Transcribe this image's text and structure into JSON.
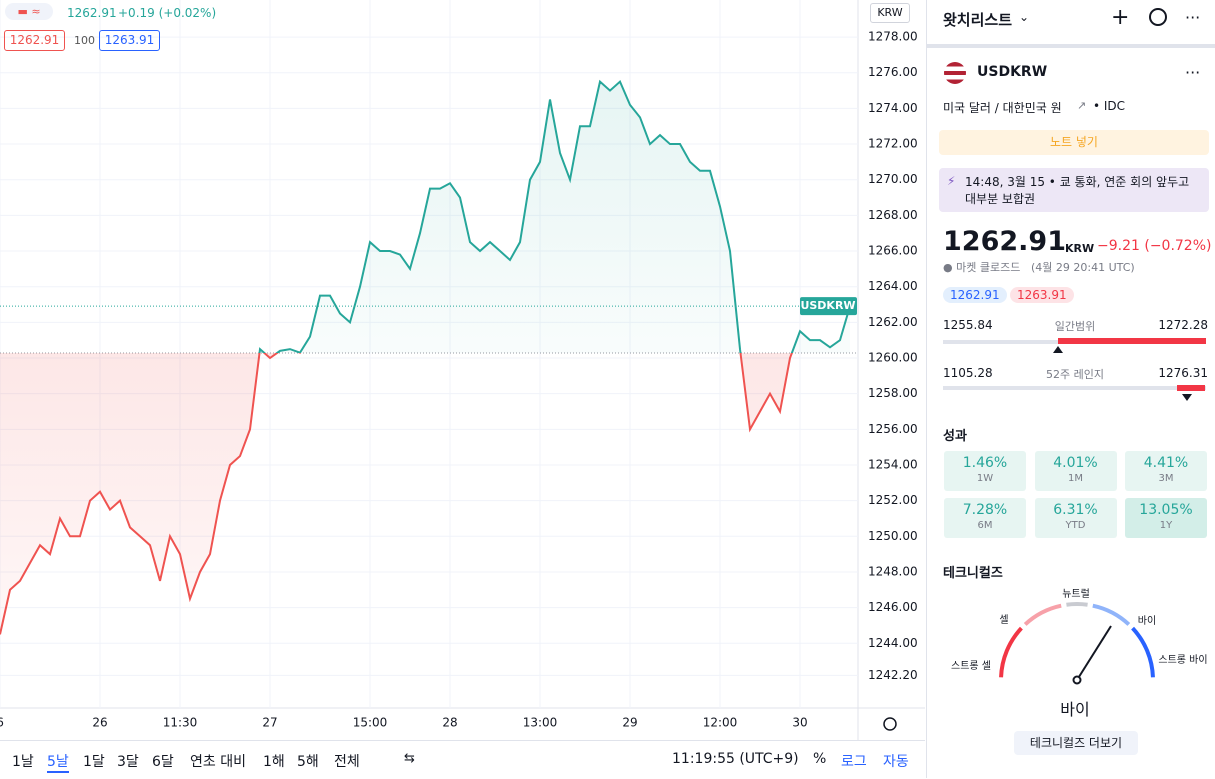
{
  "top_bar": {
    "price": "1262.91",
    "change": "+0.19 (+0.02%)",
    "bid": "1262.91",
    "quantity": "100",
    "ask": "1263.91",
    "currency": "KRW"
  },
  "chart_data": {
    "type": "line",
    "grid": true,
    "categories": [
      "6",
      null,
      null,
      null,
      null,
      null,
      null,
      null,
      null,
      null,
      "26",
      null,
      null,
      null,
      null,
      null,
      null,
      null,
      "11:30",
      null,
      null,
      null,
      null,
      null,
      null,
      null,
      null,
      "27",
      null,
      null,
      null,
      null,
      null,
      null,
      null,
      null,
      null,
      "15:00",
      null,
      null,
      null,
      null,
      null,
      null,
      null,
      "28",
      null,
      null,
      null,
      null,
      null,
      null,
      null,
      null,
      "13:00",
      null,
      null,
      null,
      null,
      null,
      null,
      null,
      null,
      "29",
      null,
      null,
      null,
      null,
      null,
      null,
      null,
      null,
      "12:00",
      null,
      null,
      null,
      null,
      null,
      null,
      null,
      "30",
      null,
      null,
      null,
      null,
      null
    ],
    "series": [
      {
        "name": "USDKRW",
        "color": "#26a69a",
        "down_color": "#ef5350",
        "values": [
          1244.5,
          1247,
          1247.5,
          1248.5,
          1249.5,
          1249,
          1251,
          1250,
          1250,
          1252,
          1252.5,
          1251.5,
          1252,
          1250.5,
          1250,
          1249.5,
          1247.5,
          1250,
          1249,
          1246.5,
          1248,
          1249,
          1252,
          1254,
          1254.5,
          1256,
          1260.5,
          1260,
          1260.4,
          1260.5,
          1260.3,
          1261.2,
          1263.5,
          1263.5,
          1262.5,
          1262,
          1264,
          1266.5,
          1266,
          1266,
          1265.8,
          1265,
          1267,
          1269.5,
          1269.5,
          1269.8,
          1269,
          1266.5,
          1266,
          1266.5,
          1266,
          1265.5,
          1266.5,
          1270,
          1271,
          1274.5,
          1271.5,
          1270,
          1273,
          1273,
          1275.5,
          1275,
          1275.5,
          1274.2,
          1273.5,
          1272,
          1272.5,
          1272,
          1272,
          1271,
          1270.5,
          1270.5,
          1268.5,
          1266,
          1260.5,
          1256,
          1257,
          1258,
          1257,
          1260,
          1261.5,
          1261,
          1261,
          1260.6,
          1261,
          1262.91
        ]
      }
    ],
    "base_value": 1260.28,
    "ylim": [
      1240.37,
      1280.08
    ],
    "yticks": [
      {
        "value": 1242.2,
        "label": "1242.20"
      },
      {
        "value": 1244,
        "label": "1244.00"
      },
      {
        "value": 1246,
        "label": "1246.00"
      },
      {
        "value": 1248,
        "label": "1248.00"
      },
      {
        "value": 1250,
        "label": "1250.00"
      },
      {
        "value": 1252,
        "label": "1252.00"
      },
      {
        "value": 1254,
        "label": "1254.00"
      },
      {
        "value": 1256,
        "label": "1256.00"
      },
      {
        "value": 1258,
        "label": "1258.00"
      },
      {
        "value": 1260,
        "label": "1260.00"
      },
      {
        "value": 1262,
        "label": "1262.00"
      },
      {
        "value": 1264,
        "label": "1264.00"
      },
      {
        "value": 1266,
        "label": "1266.00"
      },
      {
        "value": 1268,
        "label": "1268.00"
      },
      {
        "value": 1270,
        "label": "1270.00"
      },
      {
        "value": 1272,
        "label": "1272.00"
      },
      {
        "value": 1274,
        "label": "1274.00"
      },
      {
        "value": 1276,
        "label": "1276.00"
      },
      {
        "value": 1278,
        "label": "1278.00"
      }
    ]
  },
  "bottom_bar": {
    "ranges": [
      "1날",
      "5날",
      "1달",
      "3달",
      "6달",
      "연초 대비",
      "1해",
      "5해",
      "전체"
    ],
    "clock": "11:19:55 (UTC+9)",
    "percent": "%",
    "log": "로그",
    "auto": "자동"
  },
  "sidebar": {
    "title": "왓치리스트",
    "symbol": "USDKRW",
    "description": "미국 달러 / 대한민국 원",
    "source": "• IDC",
    "note_button": "노트 넣기",
    "news": {
      "time": "14:48, 3월 15 •",
      "headline": "쿄 통화, 연준 회의 앞두고 대부분 보합권"
    },
    "price": "1262.91",
    "currency": "KRW",
    "change": "−9.21 (−0.72%)",
    "status": "● 마켓 클로즈드",
    "status_time": "(4월 29 20:41 UTC)",
    "bid": "1262.91",
    "ask": "1263.91",
    "day_range": {
      "low": "1255.84",
      "label": "일간범위",
      "high": "1272.28"
    },
    "week52_range": {
      "low": "1105.28",
      "label": "52주 레인지",
      "high": "1276.31"
    },
    "performance_title": "성과",
    "performance": [
      {
        "value": "1.46%",
        "period": "1W"
      },
      {
        "value": "4.01%",
        "period": "1M"
      },
      {
        "value": "4.41%",
        "period": "3M"
      },
      {
        "value": "7.28%",
        "period": "6M"
      },
      {
        "value": "6.31%",
        "period": "YTD"
      },
      {
        "value": "13.05%",
        "period": "1Y"
      }
    ],
    "technicals_title": "테크니컬즈",
    "gauge": {
      "strong_sell": "스트롱 셀",
      "sell": "셀",
      "neutral": "뉴트럴",
      "buy": "바이",
      "strong_buy": "스트롱 바이"
    },
    "verdict": "바이",
    "more_button": "테크니컬즈 더보기"
  }
}
